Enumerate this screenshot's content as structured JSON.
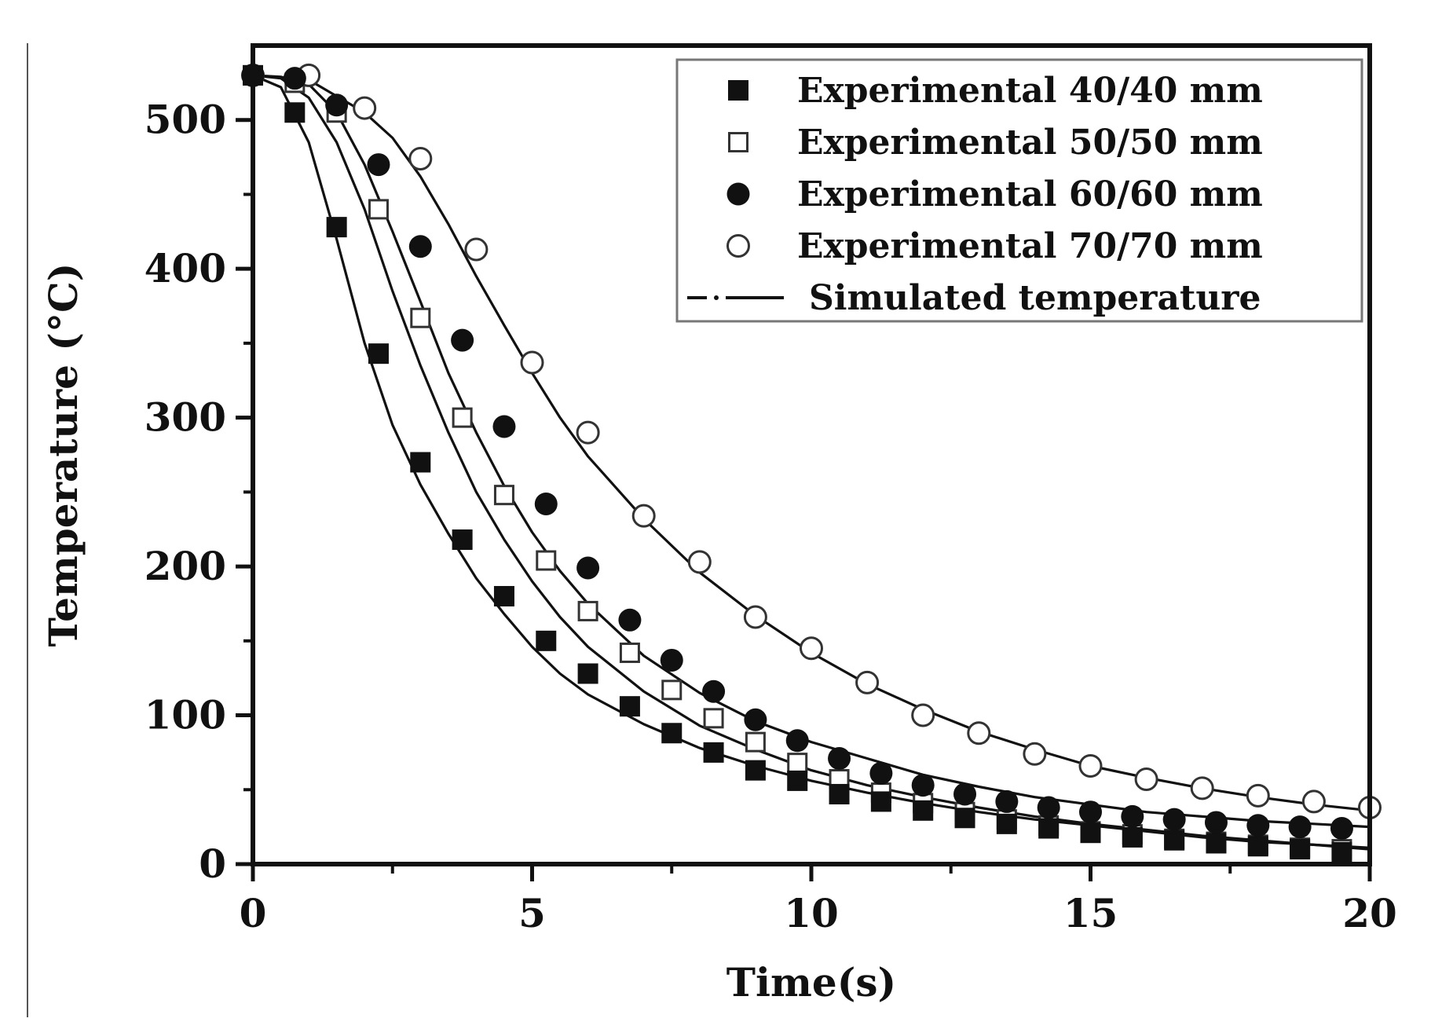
{
  "chart_data": {
    "type": "scatter",
    "title": "",
    "xlabel": "Time(s)",
    "ylabel": "Temperature (°C)",
    "xlim": [
      0,
      20
    ],
    "ylim": [
      0,
      550
    ],
    "xticks": [
      0,
      5,
      10,
      15,
      20
    ],
    "yticks": [
      0,
      100,
      200,
      300,
      400,
      500
    ],
    "grid": false,
    "legend_position": "top-right",
    "colors": {
      "ink": "#111111",
      "background": "#ffffff"
    },
    "series": [
      {
        "name": "Experimental 40/40 mm",
        "marker": "filled-square",
        "x": [
          0,
          0.75,
          1.5,
          2.25,
          3,
          3.75,
          4.5,
          5.25,
          6,
          6.75,
          7.5,
          8.25,
          9,
          9.75,
          10.5,
          11.25,
          12,
          12.75,
          13.5,
          14.25,
          15,
          15.75,
          16.5,
          17.25,
          18,
          18.75,
          19.5
        ],
        "values": [
          530,
          505,
          428,
          343,
          270,
          218,
          180,
          150,
          128,
          106,
          88,
          75,
          63,
          56,
          47,
          42,
          36,
          31,
          27,
          24,
          21,
          18,
          16,
          14,
          12,
          10,
          8
        ]
      },
      {
        "name": "Experimental 50/50 mm",
        "marker": "open-square",
        "x": [
          0,
          0.75,
          1.5,
          2.25,
          3,
          3.75,
          4.5,
          5.25,
          6,
          6.75,
          7.5,
          8.25,
          9,
          9.75,
          10.5,
          11.25,
          12,
          12.75,
          13.5,
          14.25,
          15,
          15.75,
          16.5,
          17.25,
          18,
          18.75,
          19.5
        ],
        "values": [
          530,
          525,
          505,
          440,
          367,
          300,
          248,
          204,
          170,
          142,
          117,
          98,
          82,
          68,
          57,
          48,
          41,
          35,
          30,
          26,
          22,
          20,
          17,
          15,
          13,
          11,
          10
        ]
      },
      {
        "name": "Experimental 60/60 mm",
        "marker": "filled-circle",
        "x": [
          0,
          0.75,
          1.5,
          2.25,
          3,
          3.75,
          4.5,
          5.25,
          6,
          6.75,
          7.5,
          8.25,
          9,
          9.75,
          10.5,
          11.25,
          12,
          12.75,
          13.5,
          14.25,
          15,
          15.75,
          16.5,
          17.25,
          18,
          18.75,
          19.5
        ],
        "values": [
          530,
          528,
          510,
          470,
          415,
          352,
          294,
          242,
          199,
          164,
          137,
          116,
          97,
          83,
          71,
          61,
          53,
          47,
          42,
          38,
          35,
          32,
          30,
          28,
          26,
          25,
          24
        ]
      },
      {
        "name": "Experimental 70/70 mm",
        "marker": "open-circle",
        "x": [
          0,
          1,
          2,
          3,
          4,
          5,
          6,
          7,
          8,
          9,
          10,
          11,
          12,
          13,
          14,
          15,
          16,
          17,
          18,
          19,
          20
        ],
        "values": [
          530,
          530,
          508,
          474,
          413,
          337,
          290,
          234,
          203,
          166,
          145,
          122,
          100,
          88,
          74,
          66,
          57,
          51,
          46,
          42,
          38
        ]
      },
      {
        "name": "Simulated temperature",
        "marker": "line",
        "note": "fitted curves for each specimen size",
        "curves": [
          {
            "for": "40/40 mm",
            "x": [
              0,
              0.5,
              1,
              1.5,
              2,
              2.5,
              3,
              3.5,
              4,
              4.5,
              5,
              5.5,
              6,
              7,
              8,
              9,
              10,
              11,
              12,
              13,
              14,
              15,
              16,
              17,
              18,
              19,
              20
            ],
            "values": [
              530,
              522,
              485,
              420,
              350,
              295,
              255,
              222,
              192,
              168,
              146,
              128,
              114,
              94,
              78,
              66,
              56,
              48,
              41,
              35,
              30,
              26,
              22,
              18,
              15,
              13,
              10
            ]
          },
          {
            "for": "50/50 mm",
            "x": [
              0,
              0.5,
              1,
              1.5,
              2,
              2.5,
              3,
              3.5,
              4,
              4.5,
              5,
              5.5,
              6,
              7,
              8,
              9,
              10,
              11,
              12,
              13,
              14,
              15,
              16,
              17,
              18,
              19,
              20
            ],
            "values": [
              530,
              528,
              515,
              485,
              440,
              385,
              335,
              290,
              250,
              218,
              190,
              166,
              146,
              116,
              93,
              77,
              63,
              53,
              45,
              38,
              32,
              27,
              23,
              19,
              16,
              13,
              11
            ]
          },
          {
            "for": "60/60 mm",
            "x": [
              0,
              0.5,
              1,
              1.5,
              2,
              2.5,
              3,
              3.5,
              4,
              4.5,
              5,
              5.5,
              6,
              7,
              8,
              9,
              10,
              11,
              12,
              13,
              14,
              15,
              16,
              17,
              18,
              19,
              20
            ],
            "values": [
              530,
              529,
              524,
              505,
              470,
              425,
              378,
              330,
              290,
              254,
              223,
              197,
              175,
              140,
              115,
              96,
              82,
              71,
              60,
              52,
              45,
              40,
              35,
              32,
              29,
              27,
              25
            ]
          },
          {
            "for": "70/70 mm",
            "x": [
              0,
              1,
              2,
              2.5,
              3,
              3.5,
              4,
              4.5,
              5,
              5.5,
              6,
              7,
              8,
              9,
              10,
              11,
              12,
              13,
              14,
              15,
              16,
              17,
              18,
              19,
              20
            ],
            "values": [
              530,
              527,
              505,
              488,
              462,
              430,
              395,
              362,
              330,
              300,
              274,
              232,
              196,
              167,
              142,
              121,
              104,
              89,
              77,
              66,
              58,
              51,
              45,
              40,
              36
            ]
          }
        ]
      }
    ]
  }
}
